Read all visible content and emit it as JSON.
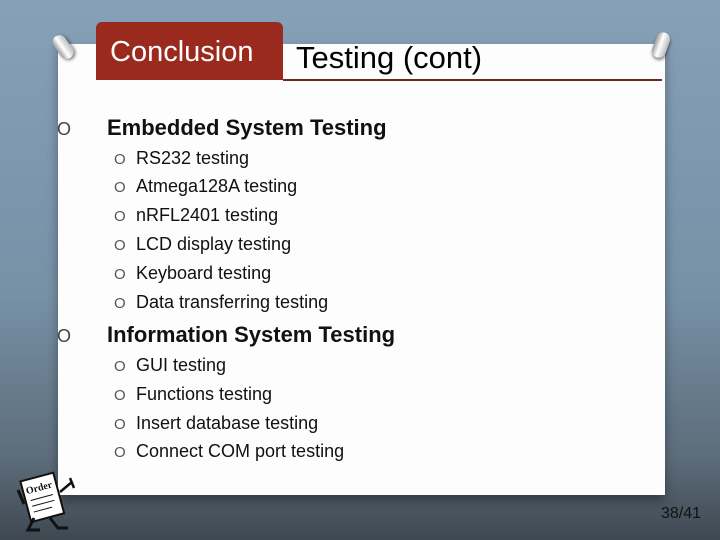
{
  "header": {
    "tab_label": "Conclusion",
    "title": "Testing (cont)"
  },
  "sections": [
    {
      "label": "Embedded System Testing",
      "items": [
        "RS232 testing",
        "Atmega128A testing",
        "nRFL2401 testing",
        "LCD display testing",
        "Keyboard testing",
        "Data transferring testing"
      ]
    },
    {
      "label": "Information System Testing",
      "items": [
        "GUI testing",
        "Functions testing",
        "Insert database testing",
        "Connect COM port testing"
      ]
    }
  ],
  "bullet": "O",
  "page_number": "38/41",
  "mascot_text": "Order",
  "colors": {
    "tab": "#9b2a1e",
    "rule": "#6b2a20",
    "background": "#7790a6"
  }
}
